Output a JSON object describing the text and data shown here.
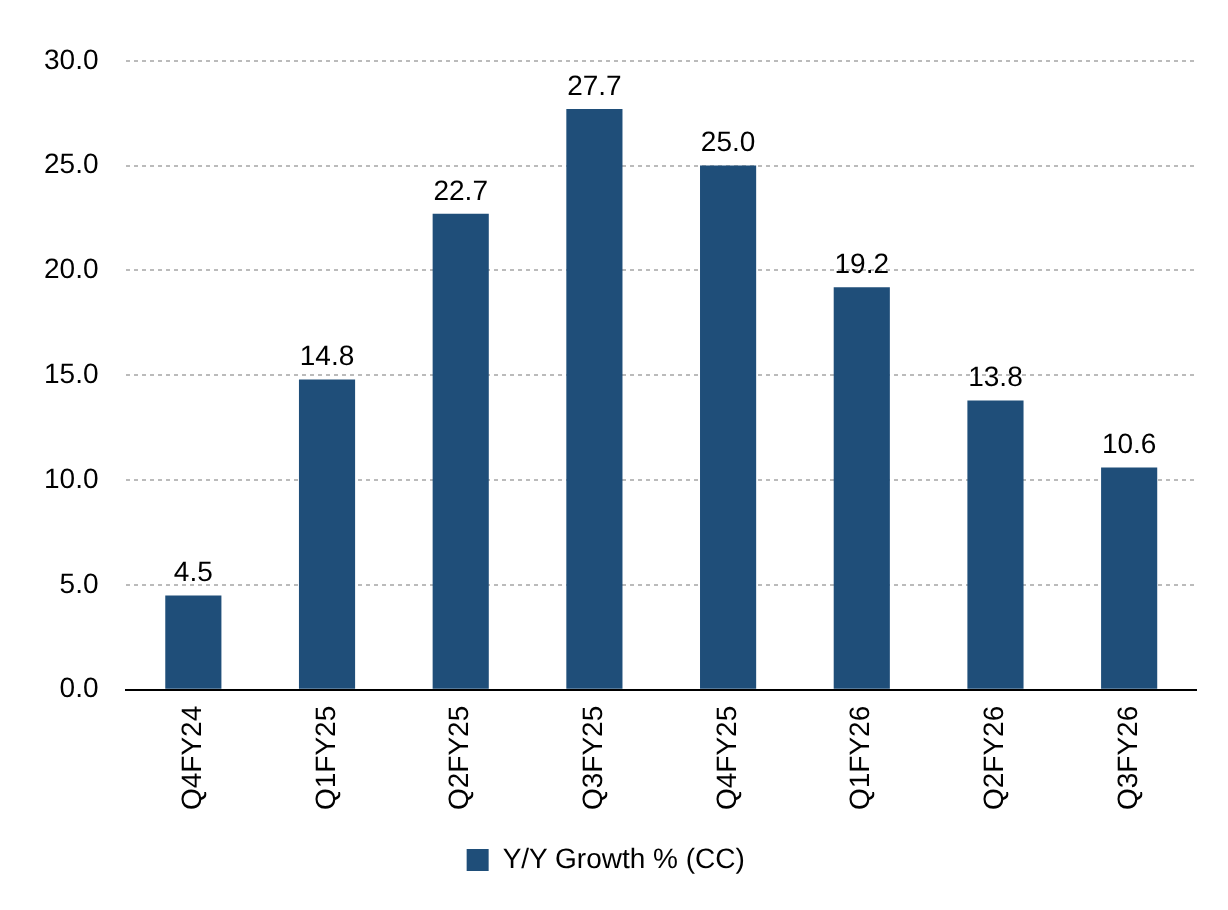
{
  "chart_data": {
    "type": "bar",
    "categories": [
      "Q4FY24",
      "Q1FY25",
      "Q2FY25",
      "Q3FY25",
      "Q4FY25",
      "Q1FY26",
      "Q2FY26",
      "Q3FY26"
    ],
    "series": [
      {
        "name": "Y/Y Growth % (CC)",
        "color": "#1f4e79",
        "values": [
          4.5,
          14.8,
          22.7,
          27.7,
          25.0,
          19.2,
          13.8,
          10.6
        ]
      }
    ],
    "value_labels": [
      "4.5",
      "14.8",
      "22.7",
      "27.7",
      "25.0",
      "19.2",
      "13.8",
      "10.6"
    ],
    "ylim": [
      0,
      30
    ],
    "yticks": [
      {
        "value": 0,
        "label": "0.0"
      },
      {
        "value": 5,
        "label": "5.0"
      },
      {
        "value": 10,
        "label": "10.0"
      },
      {
        "value": 15,
        "label": "15.0"
      },
      {
        "value": 20,
        "label": "20.0"
      },
      {
        "value": 25,
        "label": "25.0"
      },
      {
        "value": 30,
        "label": "30.0"
      }
    ],
    "grid": "y",
    "legend": "bottom"
  }
}
